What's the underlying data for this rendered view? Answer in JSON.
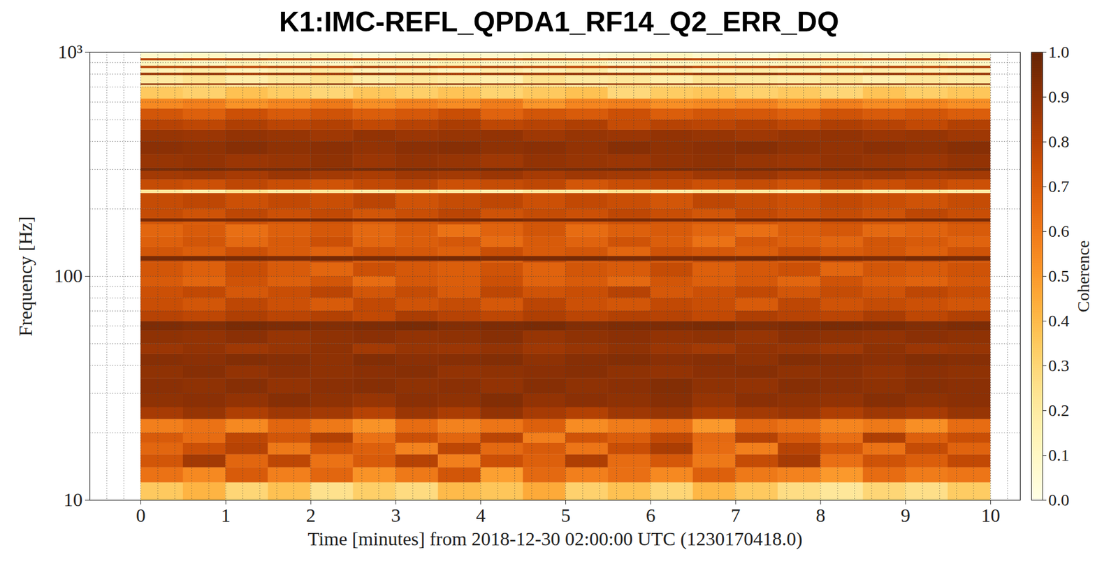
{
  "chart_data": {
    "type": "heatmap",
    "title": "K1:IMC-REFL_QPDA1_RF14_Q2_ERR_DQ",
    "x_label": "Time [minutes] from 2018-12-30 02:00:00 UTC (1230170418.0)",
    "y_label": "Frequency [Hz]",
    "log": "y",
    "grid": true,
    "xlim": [
      -0.6,
      10.35
    ],
    "xticks": [
      0,
      1,
      2,
      3,
      4,
      5,
      6,
      7,
      8,
      9,
      10
    ],
    "ylim": [
      10,
      1000
    ],
    "yticks": [
      10,
      100,
      {
        "value": 1000,
        "label": "10³"
      }
    ],
    "x_edges": [
      0,
      0.5,
      1,
      1.5,
      2,
      2.5,
      3,
      3.5,
      4,
      4.5,
      5,
      5.5,
      6,
      6.5,
      7,
      7.5,
      8,
      8.5,
      9,
      9.5,
      10
    ],
    "y_edges": [
      10,
      12,
      14,
      16,
      18,
      20,
      23,
      26,
      30,
      35,
      40,
      45,
      50,
      57,
      63,
      70,
      80,
      90,
      100,
      115,
      117,
      123,
      135,
      150,
      170,
      175,
      181,
      200,
      235,
      243,
      270,
      295,
      305,
      350,
      400,
      450,
      500,
      560,
      620,
      700,
      715,
      725,
      790,
      810,
      850,
      870,
      920,
      940,
      1000
    ],
    "z": [
      [
        0.35,
        0.42,
        0.3,
        0.38,
        0.25,
        0.33,
        0.28,
        0.4,
        0.36,
        0.45,
        0.32,
        0.38,
        0.3,
        0.41,
        0.35,
        0.27,
        0.22,
        0.3,
        0.26,
        0.34
      ],
      [
        0.62,
        0.55,
        0.7,
        0.58,
        0.66,
        0.52,
        0.6,
        0.72,
        0.48,
        0.65,
        0.58,
        0.63,
        0.55,
        0.68,
        0.6,
        0.57,
        0.5,
        0.64,
        0.59,
        0.61
      ],
      [
        0.72,
        0.85,
        0.66,
        0.78,
        0.62,
        0.7,
        0.8,
        0.58,
        0.74,
        0.68,
        0.82,
        0.64,
        0.71,
        0.6,
        0.76,
        0.84,
        0.63,
        0.73,
        0.69,
        0.77
      ],
      [
        0.66,
        0.74,
        0.8,
        0.6,
        0.72,
        0.68,
        0.57,
        0.78,
        0.65,
        0.7,
        0.61,
        0.75,
        0.83,
        0.64,
        0.58,
        0.8,
        0.71,
        0.62,
        0.76,
        0.67
      ],
      [
        0.7,
        0.64,
        0.78,
        0.72,
        0.81,
        0.62,
        0.74,
        0.66,
        0.79,
        0.58,
        0.73,
        0.69,
        0.77,
        0.65,
        0.8,
        0.71,
        0.63,
        0.82,
        0.68,
        0.75
      ],
      [
        0.58,
        0.62,
        0.55,
        0.66,
        0.6,
        0.52,
        0.64,
        0.57,
        0.61,
        0.68,
        0.54,
        0.59,
        0.63,
        0.5,
        0.65,
        0.62,
        0.56,
        0.6,
        0.53,
        0.64
      ],
      [
        0.84,
        0.88,
        0.82,
        0.86,
        0.85,
        0.8,
        0.87,
        0.83,
        0.89,
        0.84,
        0.81,
        0.86,
        0.88,
        0.83,
        0.85,
        0.87,
        0.82,
        0.86,
        0.84,
        0.88
      ],
      [
        0.9,
        0.91,
        0.89,
        0.92,
        0.9,
        0.88,
        0.91,
        0.9,
        0.93,
        0.89,
        0.91,
        0.9,
        0.92,
        0.88,
        0.91,
        0.9,
        0.89,
        0.92,
        0.9,
        0.91
      ],
      [
        0.91,
        0.9,
        0.92,
        0.89,
        0.91,
        0.92,
        0.9,
        0.91,
        0.89,
        0.92,
        0.9,
        0.91,
        0.93,
        0.9,
        0.89,
        0.92,
        0.91,
        0.9,
        0.92,
        0.91
      ],
      [
        0.9,
        0.92,
        0.89,
        0.91,
        0.9,
        0.91,
        0.92,
        0.89,
        0.9,
        0.91,
        0.92,
        0.9,
        0.89,
        0.91,
        0.92,
        0.9,
        0.91,
        0.89,
        0.91,
        0.9
      ],
      [
        0.92,
        0.91,
        0.93,
        0.92,
        0.9,
        0.93,
        0.91,
        0.92,
        0.93,
        0.9,
        0.92,
        0.93,
        0.91,
        0.92,
        0.9,
        0.93,
        0.92,
        0.91,
        0.93,
        0.92
      ],
      [
        0.87,
        0.89,
        0.86,
        0.88,
        0.9,
        0.85,
        0.88,
        0.87,
        0.89,
        0.86,
        0.88,
        0.9,
        0.87,
        0.85,
        0.89,
        0.88,
        0.86,
        0.9,
        0.87,
        0.88
      ],
      [
        0.9,
        0.89,
        0.91,
        0.88,
        0.9,
        0.91,
        0.89,
        0.9,
        0.92,
        0.88,
        0.9,
        0.91,
        0.89,
        0.9,
        0.88,
        0.91,
        0.9,
        0.89,
        0.91,
        0.9
      ],
      [
        0.94,
        0.93,
        0.95,
        0.94,
        0.93,
        0.94,
        0.95,
        0.93,
        0.94,
        0.95,
        0.93,
        0.94,
        0.94,
        0.95,
        0.93,
        0.94,
        0.95,
        0.94,
        0.93,
        0.94
      ],
      [
        0.8,
        0.78,
        0.82,
        0.79,
        0.81,
        0.77,
        0.83,
        0.8,
        0.78,
        0.82,
        0.79,
        0.81,
        0.8,
        0.77,
        0.82,
        0.8,
        0.79,
        0.83,
        0.78,
        0.81
      ],
      [
        0.75,
        0.72,
        0.78,
        0.74,
        0.7,
        0.77,
        0.73,
        0.76,
        0.71,
        0.79,
        0.74,
        0.72,
        0.77,
        0.75,
        0.7,
        0.78,
        0.73,
        0.76,
        0.74,
        0.72
      ],
      [
        0.74,
        0.77,
        0.71,
        0.75,
        0.79,
        0.72,
        0.76,
        0.7,
        0.78,
        0.73,
        0.75,
        0.8,
        0.71,
        0.74,
        0.77,
        0.72,
        0.76,
        0.73,
        0.78,
        0.75
      ],
      [
        0.7,
        0.66,
        0.73,
        0.68,
        0.72,
        0.64,
        0.71,
        0.69,
        0.74,
        0.67,
        0.7,
        0.65,
        0.72,
        0.68,
        0.71,
        0.66,
        0.73,
        0.69,
        0.67,
        0.71
      ],
      [
        0.72,
        0.68,
        0.75,
        0.7,
        0.66,
        0.74,
        0.71,
        0.69,
        0.73,
        0.67,
        0.72,
        0.7,
        0.76,
        0.68,
        0.71,
        0.74,
        0.66,
        0.72,
        0.7,
        0.73
      ],
      [
        0.74,
        0.71,
        0.76,
        0.72,
        0.78,
        0.7,
        0.75,
        0.73,
        0.69,
        0.77,
        0.72,
        0.74,
        0.71,
        0.76,
        0.73,
        0.7,
        0.75,
        0.72,
        0.74,
        0.71
      ],
      [
        0.95,
        0.96,
        0.95,
        0.94,
        0.96,
        0.95,
        0.95,
        0.96,
        0.94,
        0.95,
        0.96,
        0.95,
        0.94,
        0.95,
        0.96,
        0.95,
        0.95,
        0.94,
        0.96,
        0.95
      ],
      [
        0.72,
        0.69,
        0.74,
        0.7,
        0.67,
        0.73,
        0.71,
        0.68,
        0.75,
        0.7,
        0.72,
        0.66,
        0.73,
        0.71,
        0.69,
        0.74,
        0.7,
        0.72,
        0.68,
        0.73
      ],
      [
        0.68,
        0.72,
        0.65,
        0.7,
        0.74,
        0.66,
        0.69,
        0.71,
        0.64,
        0.7,
        0.67,
        0.73,
        0.69,
        0.62,
        0.71,
        0.68,
        0.66,
        0.72,
        0.7,
        0.67
      ],
      [
        0.66,
        0.7,
        0.63,
        0.68,
        0.71,
        0.65,
        0.69,
        0.62,
        0.67,
        0.72,
        0.64,
        0.68,
        0.7,
        0.66,
        0.63,
        0.69,
        0.71,
        0.65,
        0.67,
        0.7
      ],
      [
        0.72,
        0.7,
        0.74,
        0.71,
        0.73,
        0.69,
        0.72,
        0.75,
        0.7,
        0.73,
        0.71,
        0.74,
        0.72,
        0.7,
        0.73,
        0.71,
        0.74,
        0.72,
        0.7,
        0.73
      ],
      [
        0.95,
        0.94,
        0.95,
        0.96,
        0.95,
        0.94,
        0.95,
        0.95,
        0.96,
        0.94,
        0.95,
        0.95,
        0.94,
        0.96,
        0.95,
        0.95,
        0.94,
        0.95,
        0.96,
        0.95
      ],
      [
        0.76,
        0.73,
        0.78,
        0.74,
        0.77,
        0.72,
        0.75,
        0.79,
        0.73,
        0.76,
        0.74,
        0.78,
        0.75,
        0.72,
        0.77,
        0.74,
        0.76,
        0.73,
        0.78,
        0.75
      ],
      [
        0.76,
        0.78,
        0.74,
        0.77,
        0.75,
        0.79,
        0.73,
        0.76,
        0.78,
        0.74,
        0.77,
        0.75,
        0.72,
        0.78,
        0.76,
        0.74,
        0.77,
        0.75,
        0.73,
        0.76
      ],
      [
        0.22,
        0.18,
        0.25,
        0.2,
        0.23,
        0.19,
        0.24,
        0.21,
        0.17,
        0.22,
        0.2,
        0.25,
        0.19,
        0.23,
        0.21,
        0.18,
        0.24,
        0.2,
        0.22,
        0.19
      ],
      [
        0.76,
        0.74,
        0.78,
        0.75,
        0.73,
        0.77,
        0.79,
        0.74,
        0.76,
        0.78,
        0.72,
        0.75,
        0.77,
        0.74,
        0.76,
        0.73,
        0.78,
        0.75,
        0.77,
        0.74
      ],
      [
        0.85,
        0.86,
        0.84,
        0.87,
        0.85,
        0.83,
        0.86,
        0.85,
        0.87,
        0.84,
        0.86,
        0.85,
        0.83,
        0.86,
        0.87,
        0.84,
        0.85,
        0.86,
        0.84,
        0.85
      ],
      [
        0.95,
        0.96,
        0.95,
        0.95,
        0.94,
        0.96,
        0.95,
        0.95,
        0.96,
        0.94,
        0.95,
        0.96,
        0.95,
        0.94,
        0.95,
        0.96,
        0.95,
        0.95,
        0.94,
        0.95
      ],
      [
        0.88,
        0.89,
        0.87,
        0.88,
        0.9,
        0.87,
        0.89,
        0.88,
        0.86,
        0.89,
        0.88,
        0.87,
        0.89,
        0.9,
        0.88,
        0.87,
        0.89,
        0.88,
        0.87,
        0.89
      ],
      [
        0.91,
        0.9,
        0.92,
        0.9,
        0.91,
        0.89,
        0.91,
        0.92,
        0.9,
        0.91,
        0.89,
        0.92,
        0.9,
        0.91,
        0.92,
        0.9,
        0.89,
        0.91,
        0.9,
        0.92
      ],
      [
        0.88,
        0.87,
        0.89,
        0.88,
        0.86,
        0.89,
        0.87,
        0.88,
        0.89,
        0.86,
        0.88,
        0.87,
        0.89,
        0.88,
        0.86,
        0.88,
        0.89,
        0.87,
        0.88,
        0.86
      ],
      [
        0.8,
        0.78,
        0.82,
        0.79,
        0.81,
        0.77,
        0.8,
        0.83,
        0.78,
        0.8,
        0.82,
        0.76,
        0.8,
        0.79,
        0.81,
        0.78,
        0.82,
        0.8,
        0.77,
        0.81
      ],
      [
        0.72,
        0.68,
        0.74,
        0.7,
        0.73,
        0.69,
        0.71,
        0.75,
        0.67,
        0.72,
        0.7,
        0.74,
        0.69,
        0.72,
        0.71,
        0.68,
        0.73,
        0.7,
        0.72,
        0.69
      ],
      [
        0.55,
        0.58,
        0.52,
        0.56,
        0.6,
        0.53,
        0.57,
        0.54,
        0.59,
        0.51,
        0.56,
        0.58,
        0.53,
        0.55,
        0.57,
        0.52,
        0.58,
        0.54,
        0.56,
        0.53
      ],
      [
        0.35,
        0.32,
        0.38,
        0.34,
        0.3,
        0.36,
        0.33,
        0.37,
        0.31,
        0.35,
        0.38,
        0.29,
        0.34,
        0.36,
        0.32,
        0.35,
        0.3,
        0.37,
        0.33,
        0.36
      ],
      [
        0.22,
        0.25,
        0.2,
        0.26,
        0.23,
        0.19,
        0.24,
        0.21,
        0.27,
        0.22,
        0.18,
        0.25,
        0.23,
        0.2,
        0.26,
        0.22,
        0.19,
        0.24,
        0.21,
        0.23
      ],
      [
        0.9,
        0.88,
        0.91,
        0.89,
        0.92,
        0.9,
        0.87,
        0.91,
        0.89,
        0.9,
        0.92,
        0.88,
        0.9,
        0.91,
        0.89,
        0.87,
        0.9,
        0.92,
        0.89,
        0.91
      ],
      [
        0.2,
        0.24,
        0.18,
        0.22,
        0.26,
        0.19,
        0.23,
        0.21,
        0.17,
        0.25,
        0.2,
        0.22,
        0.18,
        0.24,
        0.21,
        0.19,
        0.23,
        0.17,
        0.22,
        0.2
      ],
      [
        0.85,
        0.87,
        0.83,
        0.86,
        0.84,
        0.88,
        0.85,
        0.82,
        0.86,
        0.84,
        0.87,
        0.85,
        0.83,
        0.86,
        0.88,
        0.84,
        0.85,
        0.87,
        0.83,
        0.86
      ],
      [
        0.14,
        0.18,
        0.12,
        0.16,
        0.2,
        0.13,
        0.15,
        0.11,
        0.17,
        0.14,
        0.19,
        0.12,
        0.16,
        0.13,
        0.18,
        0.15,
        0.11,
        0.17,
        0.14,
        0.16
      ],
      [
        0.8,
        0.82,
        0.78,
        0.81,
        0.79,
        0.83,
        0.8,
        0.77,
        0.82,
        0.8,
        0.78,
        0.81,
        0.84,
        0.79,
        0.8,
        0.82,
        0.78,
        0.81,
        0.79,
        0.83
      ],
      [
        0.12,
        0.1,
        0.14,
        0.11,
        0.09,
        0.13,
        0.12,
        0.15,
        0.1,
        0.12,
        0.14,
        0.09,
        0.11,
        0.13,
        0.1,
        0.12,
        0.14,
        0.11,
        0.13,
        0.1
      ],
      [
        0.8,
        0.78,
        0.82,
        0.79,
        0.81,
        0.77,
        0.83,
        0.8,
        0.78,
        0.81,
        0.79,
        0.82,
        0.8,
        0.78,
        0.81,
        0.83,
        0.79,
        0.8,
        0.82,
        0.78
      ],
      [
        0.08,
        0.1,
        0.07,
        0.09,
        0.12,
        0.06,
        0.09,
        0.11,
        0.08,
        0.1,
        0.07,
        0.09,
        0.12,
        0.08,
        0.06,
        0.1,
        0.09,
        0.07,
        0.11,
        0.08
      ]
    ],
    "colorbar": {
      "label": "Coherence",
      "lim": [
        0,
        1
      ],
      "ticks": [
        {
          "value": 0,
          "label": "0.0"
        },
        {
          "value": 0.1,
          "label": "0.1"
        },
        {
          "value": 0.2,
          "label": "0.2"
        },
        {
          "value": 0.3,
          "label": "0.3"
        },
        {
          "value": 0.4,
          "label": "0.4"
        },
        {
          "value": 0.5,
          "label": "0.5"
        },
        {
          "value": 0.6,
          "label": "0.6"
        },
        {
          "value": 0.7,
          "label": "0.7"
        },
        {
          "value": 0.8,
          "label": "0.8"
        },
        {
          "value": 0.9,
          "label": "0.9"
        },
        {
          "value": 1,
          "label": "1.0"
        }
      ]
    }
  }
}
